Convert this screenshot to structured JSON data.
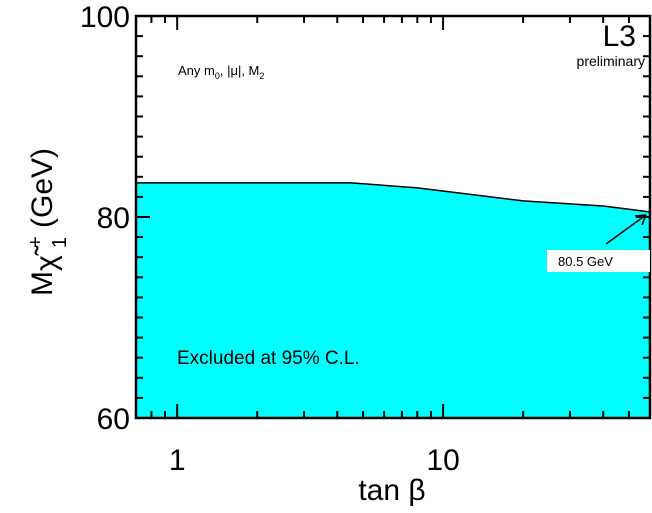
{
  "chart_data": {
    "type": "area",
    "x_scale": "log",
    "xlim": [
      0.7,
      60
    ],
    "ylim": [
      60,
      100
    ],
    "xlabel": "tan β",
    "ylabel": "M",
    "ylabel_sub": "χ̃",
    "ylabel_sub_sup": "+",
    "ylabel_sub_sub": "1",
    "ylabel_unit": "(GeV)",
    "x_ticks": [
      {
        "value": 1,
        "label": "1"
      },
      {
        "value": 10,
        "label": "10"
      }
    ],
    "y_ticks": [
      {
        "value": 60,
        "label": "60"
      },
      {
        "value": 80,
        "label": "80"
      },
      {
        "value": 100,
        "label": "100"
      }
    ],
    "boundary": {
      "x": [
        0.7,
        4.5,
        8,
        20,
        40,
        60
      ],
      "y": [
        83.4,
        83.4,
        82.9,
        81.6,
        81.1,
        80.5
      ]
    },
    "fill_color": "#00ffff",
    "experiment": "L3",
    "status": "preliminary",
    "note_parts": [
      "Any m",
      "0",
      ", |μ|, M",
      "2"
    ],
    "region_label": "Excluded at 95% C.L.",
    "annotation": {
      "text": "80.5 GeV",
      "x": 60,
      "y": 80.5
    }
  }
}
